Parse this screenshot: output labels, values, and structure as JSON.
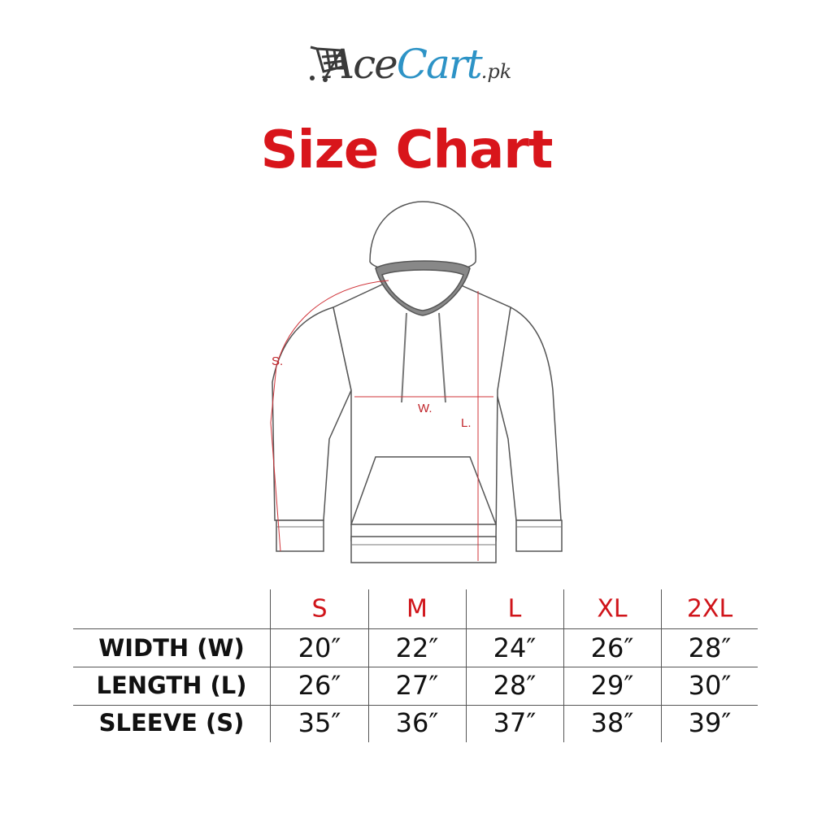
{
  "brand": {
    "name_part1": "Ace",
    "name_part2": "Cart",
    "suffix": ".pk",
    "colors": {
      "dark": "#3a3a3a",
      "blue": "#2d93c6"
    },
    "icon": "shopping-cart-icon"
  },
  "title": "Size Chart",
  "accent_color": "#d8151b",
  "diagram": {
    "labels": {
      "sleeve": "S.",
      "width": "W.",
      "length": "L."
    }
  },
  "table": {
    "sizes": [
      "S",
      "M",
      "L",
      "XL",
      "2XL"
    ],
    "rows": [
      {
        "label": "WIDTH (W)",
        "values": [
          "20″",
          "22″",
          "24″",
          "26″",
          "28″"
        ]
      },
      {
        "label": "LENGTH (L)",
        "values": [
          "26″",
          "27″",
          "28″",
          "29″",
          "30″"
        ]
      },
      {
        "label": "SLEEVE (S)",
        "values": [
          "35″",
          "36″",
          "37″",
          "38″",
          "39″"
        ]
      }
    ]
  }
}
